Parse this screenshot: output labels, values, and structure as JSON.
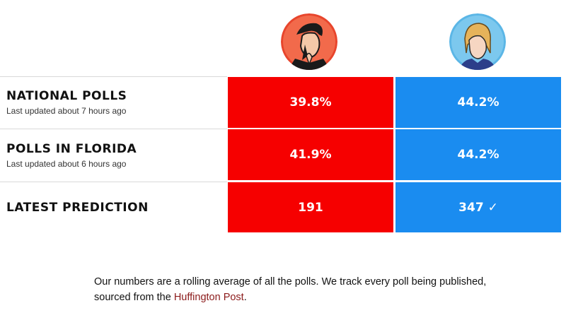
{
  "colors": {
    "red": "#f60000",
    "blue": "#1a8cf0"
  },
  "candidates": [
    {
      "icon": "candidate-portrait-red-icon"
    },
    {
      "icon": "candidate-portrait-blue-icon"
    }
  ],
  "rows": [
    {
      "label": "National Polls",
      "updated": "Last updated about 7 hours ago",
      "red": "39.8%",
      "blue": "44.2%"
    },
    {
      "label": "Polls in Florida",
      "updated": "Last updated about 6 hours ago",
      "red": "41.9%",
      "blue": "44.2%"
    },
    {
      "label": "Latest Prediction",
      "red": "191",
      "blue": "347 ✓"
    }
  ],
  "footnote": {
    "text_before": "Our numbers are a rolling average of all the polls. We track every poll being published, sourced from the ",
    "link": "Huffington Post",
    "text_after": "."
  }
}
